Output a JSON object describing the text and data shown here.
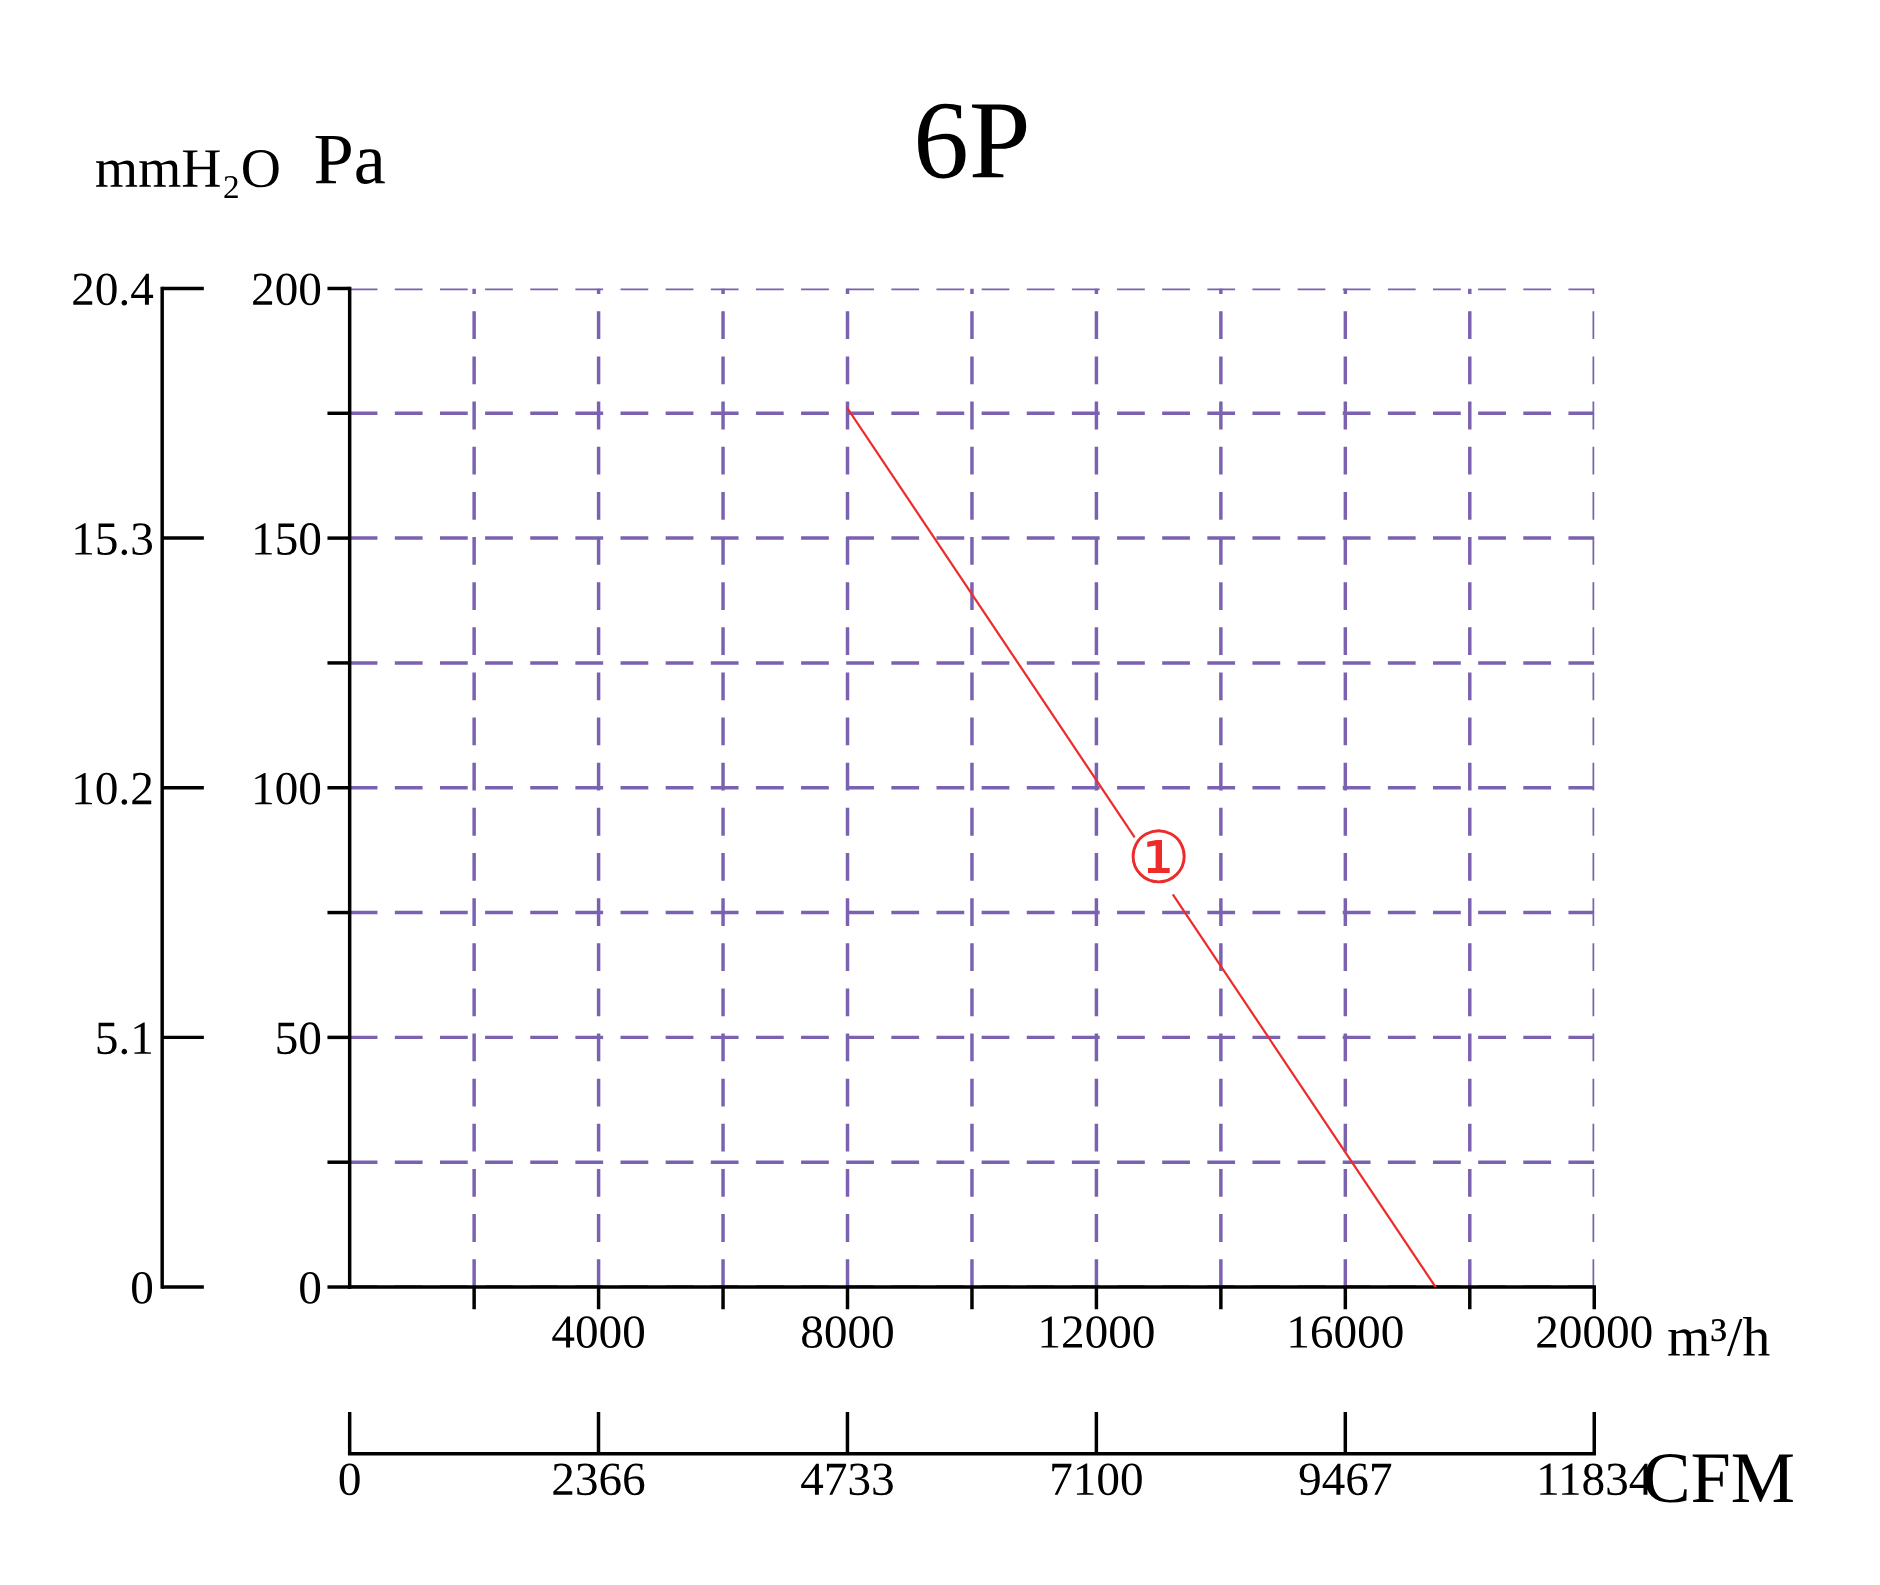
{
  "chart_data": {
    "type": "line",
    "title": "6P",
    "xlabel": "m³/h",
    "x2label": "CFM",
    "ylabel": "Pa",
    "y2label": "mmH₂O",
    "x": [
      8000,
      17450
    ],
    "series": [
      {
        "color": "#ee2b2b",
        "values": [
          176,
          0
        ]
      }
    ],
    "annotations": [
      {
        "text": "①",
        "x": 13000,
        "y": 85
      }
    ],
    "xlim": [
      0,
      20000
    ],
    "xticks": [
      {
        "value": 2000,
        "label": null
      },
      4000,
      {
        "value": 6000,
        "label": null
      },
      8000,
      {
        "value": 10000,
        "label": null
      },
      12000,
      {
        "value": 14000,
        "label": null
      },
      16000,
      {
        "value": 18000,
        "label": null
      },
      20000
    ],
    "ylim": [
      0,
      200
    ],
    "yticks": [
      0,
      {
        "value": 25,
        "label": null
      },
      50,
      {
        "value": 75,
        "label": null
      },
      100,
      {
        "value": 125,
        "label": null
      },
      150,
      {
        "value": 175,
        "label": null
      },
      200
    ],
    "x2lim": [
      0,
      11834
    ],
    "x2ticks": [
      0,
      2366,
      4733,
      7100,
      9467,
      11834
    ],
    "y2lim": [
      0,
      20.4
    ],
    "y2ticks": [
      0,
      5.1,
      10.2,
      15.3,
      20.4
    ],
    "grid": true,
    "line_style": "solid",
    "marker": "none",
    "legend": false
  }
}
